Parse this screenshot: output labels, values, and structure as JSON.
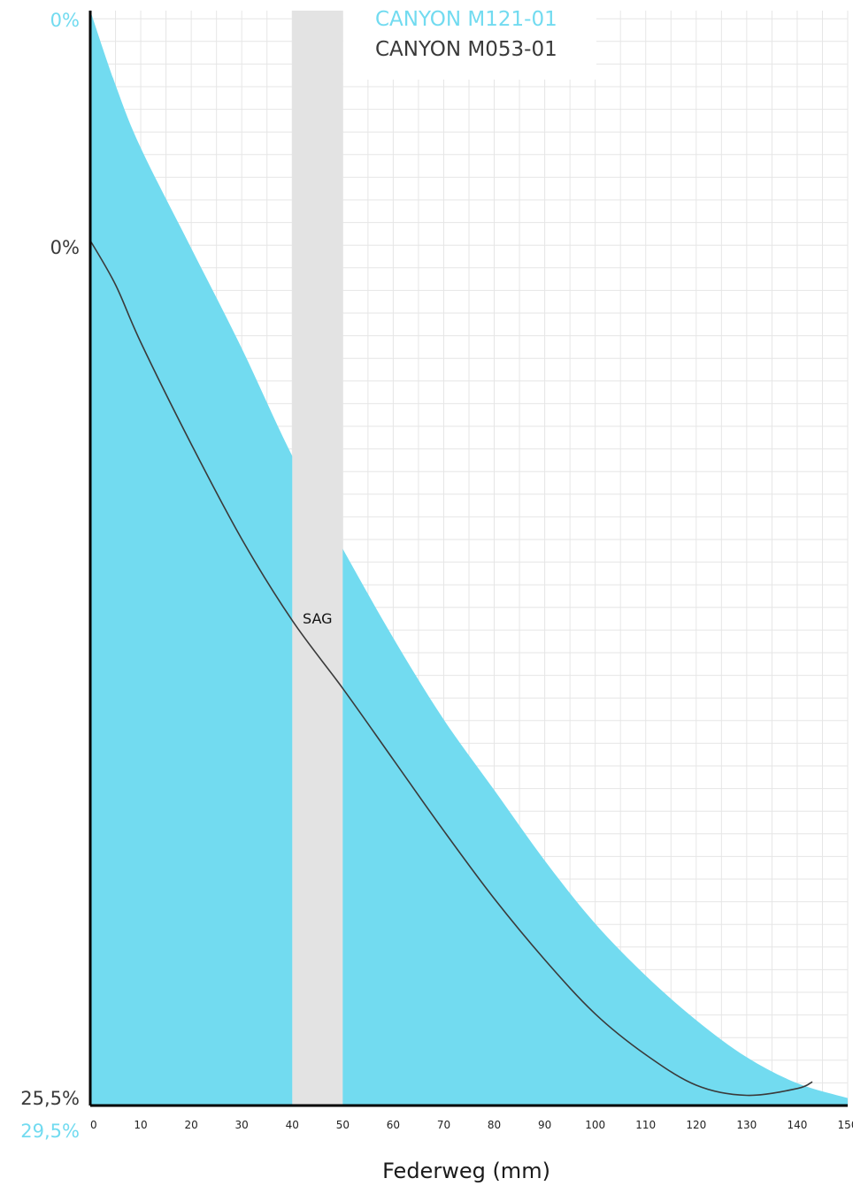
{
  "chart_data": {
    "type": "area",
    "title": "",
    "xlabel": "Federweg (mm)",
    "ylabel": "",
    "xlim": [
      0,
      150
    ],
    "grid": true,
    "x_ticks": [
      "0",
      "10",
      "20",
      "30",
      "40",
      "50",
      "60",
      "70",
      "80",
      "90",
      "100",
      "110",
      "120",
      "130",
      "140",
      "150"
    ],
    "legend": {
      "placement": "top-center",
      "entries": [
        {
          "label": "CANYON M121-01",
          "color": "#72dbf0"
        },
        {
          "label": "CANYON M053-01",
          "color": "#3a3a3a"
        }
      ]
    },
    "sag_band": {
      "label": "SAG",
      "x_start": 40,
      "x_end": 50,
      "color": "#e3e3e3"
    },
    "y_labels": {
      "series1_top": "0%",
      "series1_bottom": "29,5%",
      "series2_top": "0%",
      "series2_bottom": "25,5%"
    },
    "series": [
      {
        "name": "CANYON M121-01",
        "style": "filled-area",
        "color": "#72dbf0",
        "y_range": [
          0,
          29.5
        ],
        "x": [
          0,
          5,
          10,
          20,
          30,
          40,
          50,
          60,
          70,
          80,
          90,
          100,
          110,
          120,
          130,
          140,
          150
        ],
        "y": [
          0,
          2.0,
          3.7,
          6.4,
          9.1,
          12.0,
          14.5,
          16.9,
          19.1,
          21.0,
          22.9,
          24.6,
          26.0,
          27.2,
          28.2,
          28.9,
          29.3
        ]
      },
      {
        "name": "CANYON M053-01",
        "style": "line",
        "color": "#3a3a3a",
        "y_range": [
          0,
          25.5
        ],
        "x": [
          0,
          5,
          10,
          20,
          30,
          40,
          50,
          60,
          70,
          80,
          90,
          100,
          110,
          120,
          130,
          140,
          143
        ],
        "y": [
          0,
          1.3,
          3.0,
          6.0,
          8.8,
          11.2,
          13.2,
          15.3,
          17.4,
          19.4,
          21.2,
          22.8,
          24.0,
          24.9,
          25.2,
          25.0,
          24.8
        ]
      }
    ]
  }
}
